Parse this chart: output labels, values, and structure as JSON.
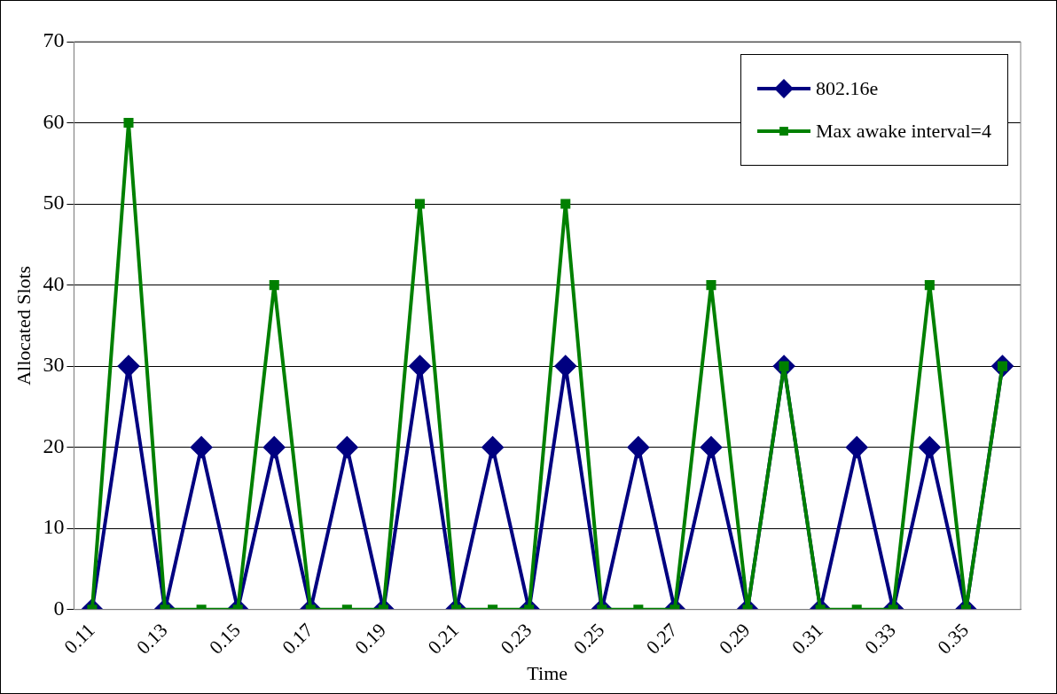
{
  "chart_data": {
    "type": "line",
    "xlabel": "Time",
    "ylabel": "Allocated Slots",
    "categories": [
      "0.11",
      null,
      "0.13",
      null,
      "0.15",
      null,
      "0.17",
      null,
      "0.19",
      null,
      "0.21",
      null,
      "0.23",
      null,
      "0.25",
      null,
      "0.27",
      null,
      "0.29",
      null,
      "0.31",
      null,
      "0.33",
      null,
      "0.35",
      null
    ],
    "series": [
      {
        "name": "802.16e",
        "color": "#000080",
        "marker": "diamond",
        "values": [
          0,
          30,
          0,
          20,
          0,
          20,
          0,
          20,
          0,
          30,
          0,
          20,
          0,
          30,
          0,
          20,
          0,
          20,
          0,
          30,
          0,
          20,
          0,
          20,
          0,
          30
        ]
      },
      {
        "name": "Max awake interval=4",
        "color": "#008000",
        "marker": "square",
        "values": [
          0,
          60,
          0,
          0,
          0,
          40,
          0,
          0,
          0,
          50,
          0,
          0,
          0,
          50,
          0,
          0,
          0,
          40,
          0,
          30,
          0,
          0,
          0,
          40,
          0,
          30
        ]
      }
    ],
    "ylim": [
      0,
      70
    ],
    "yticks": [
      0,
      10,
      20,
      30,
      40,
      50,
      60,
      70
    ],
    "grid": "y",
    "legend": "top right"
  }
}
